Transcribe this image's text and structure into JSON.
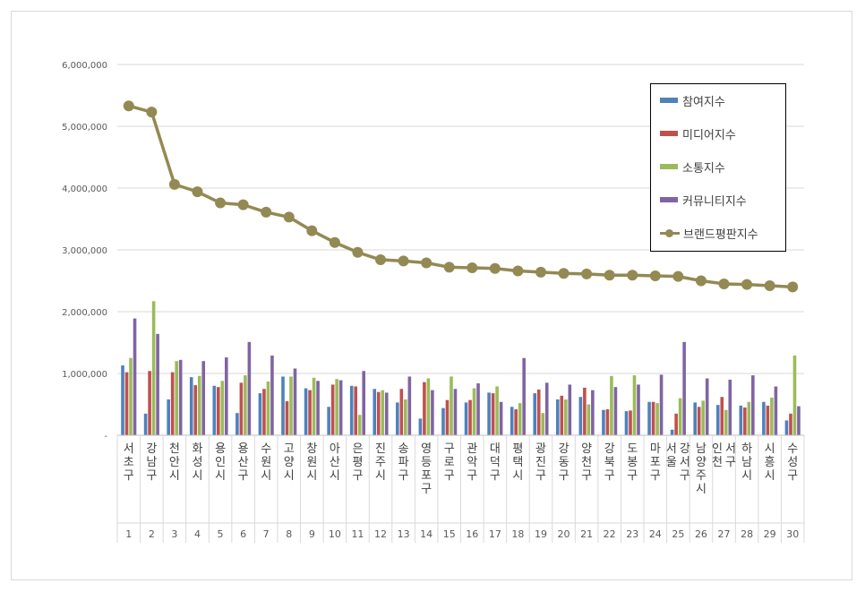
{
  "chart_data": {
    "type": "bar",
    "yticks": [
      "6,000,000",
      "5,000,000",
      "4,000,000",
      "3,000,000",
      "2,000,000",
      "1,000,000",
      "-"
    ],
    "ylim": [
      0,
      6000000
    ],
    "grid": true,
    "legend_position": "top-right",
    "categories": [
      "서초구",
      "강남구",
      "천안시",
      "화성시",
      "용인시",
      "용산구",
      "수원시",
      "고양시",
      "창원시",
      "아산시",
      "은평구",
      "진주시",
      "송파구",
      "영등포구",
      "구로구",
      "관악구",
      "대덕구",
      "평택시",
      "광진구",
      "강동구",
      "양천구",
      "강북구",
      "도봉구",
      "마포구",
      "서울 강서구",
      "남양주시",
      "인천 서구",
      "하남시",
      "시흥시",
      "수성구"
    ],
    "ranks": [
      "1",
      "2",
      "3",
      "4",
      "5",
      "6",
      "7",
      "8",
      "9",
      "10",
      "11",
      "12",
      "13",
      "14",
      "15",
      "16",
      "17",
      "18",
      "19",
      "20",
      "21",
      "22",
      "23",
      "24",
      "25",
      "26",
      "27",
      "28",
      "29",
      "30"
    ],
    "series": [
      {
        "name": "참여지수",
        "kind": "bar",
        "color": "#4f81bd",
        "values": [
          1130000,
          350000,
          580000,
          940000,
          800000,
          360000,
          680000,
          950000,
          760000,
          460000,
          800000,
          750000,
          530000,
          270000,
          440000,
          530000,
          690000,
          460000,
          680000,
          580000,
          620000,
          410000,
          390000,
          540000,
          90000,
          530000,
          490000,
          480000,
          540000,
          240000
        ]
      },
      {
        "name": "미디어지수",
        "kind": "bar",
        "color": "#c0504d",
        "values": [
          1020000,
          1040000,
          1020000,
          810000,
          780000,
          850000,
          750000,
          550000,
          730000,
          820000,
          790000,
          700000,
          750000,
          860000,
          570000,
          570000,
          680000,
          420000,
          740000,
          640000,
          770000,
          420000,
          400000,
          540000,
          350000,
          460000,
          620000,
          450000,
          480000,
          350000
        ]
      },
      {
        "name": "소통지수",
        "kind": "bar",
        "color": "#9bbb59",
        "values": [
          1250000,
          2170000,
          1200000,
          960000,
          880000,
          970000,
          870000,
          950000,
          930000,
          910000,
          330000,
          730000,
          580000,
          920000,
          950000,
          760000,
          790000,
          520000,
          360000,
          580000,
          500000,
          960000,
          970000,
          520000,
          600000,
          560000,
          410000,
          540000,
          610000,
          1290000
        ]
      },
      {
        "name": "커뮤니티지수",
        "kind": "bar",
        "color": "#8064a2",
        "values": [
          1890000,
          1640000,
          1220000,
          1200000,
          1260000,
          1510000,
          1290000,
          1080000,
          880000,
          890000,
          1040000,
          690000,
          950000,
          730000,
          750000,
          840000,
          540000,
          1250000,
          850000,
          820000,
          730000,
          780000,
          820000,
          980000,
          1510000,
          920000,
          900000,
          970000,
          790000,
          470000
        ]
      },
      {
        "name": "브랜드평판지수",
        "kind": "line",
        "color": "#938953",
        "values": [
          5330000,
          5230000,
          4060000,
          3940000,
          3760000,
          3730000,
          3610000,
          3530000,
          3310000,
          3120000,
          2960000,
          2840000,
          2820000,
          2790000,
          2720000,
          2710000,
          2700000,
          2660000,
          2640000,
          2620000,
          2610000,
          2590000,
          2590000,
          2580000,
          2570000,
          2500000,
          2450000,
          2440000,
          2420000,
          2400000
        ]
      }
    ]
  }
}
